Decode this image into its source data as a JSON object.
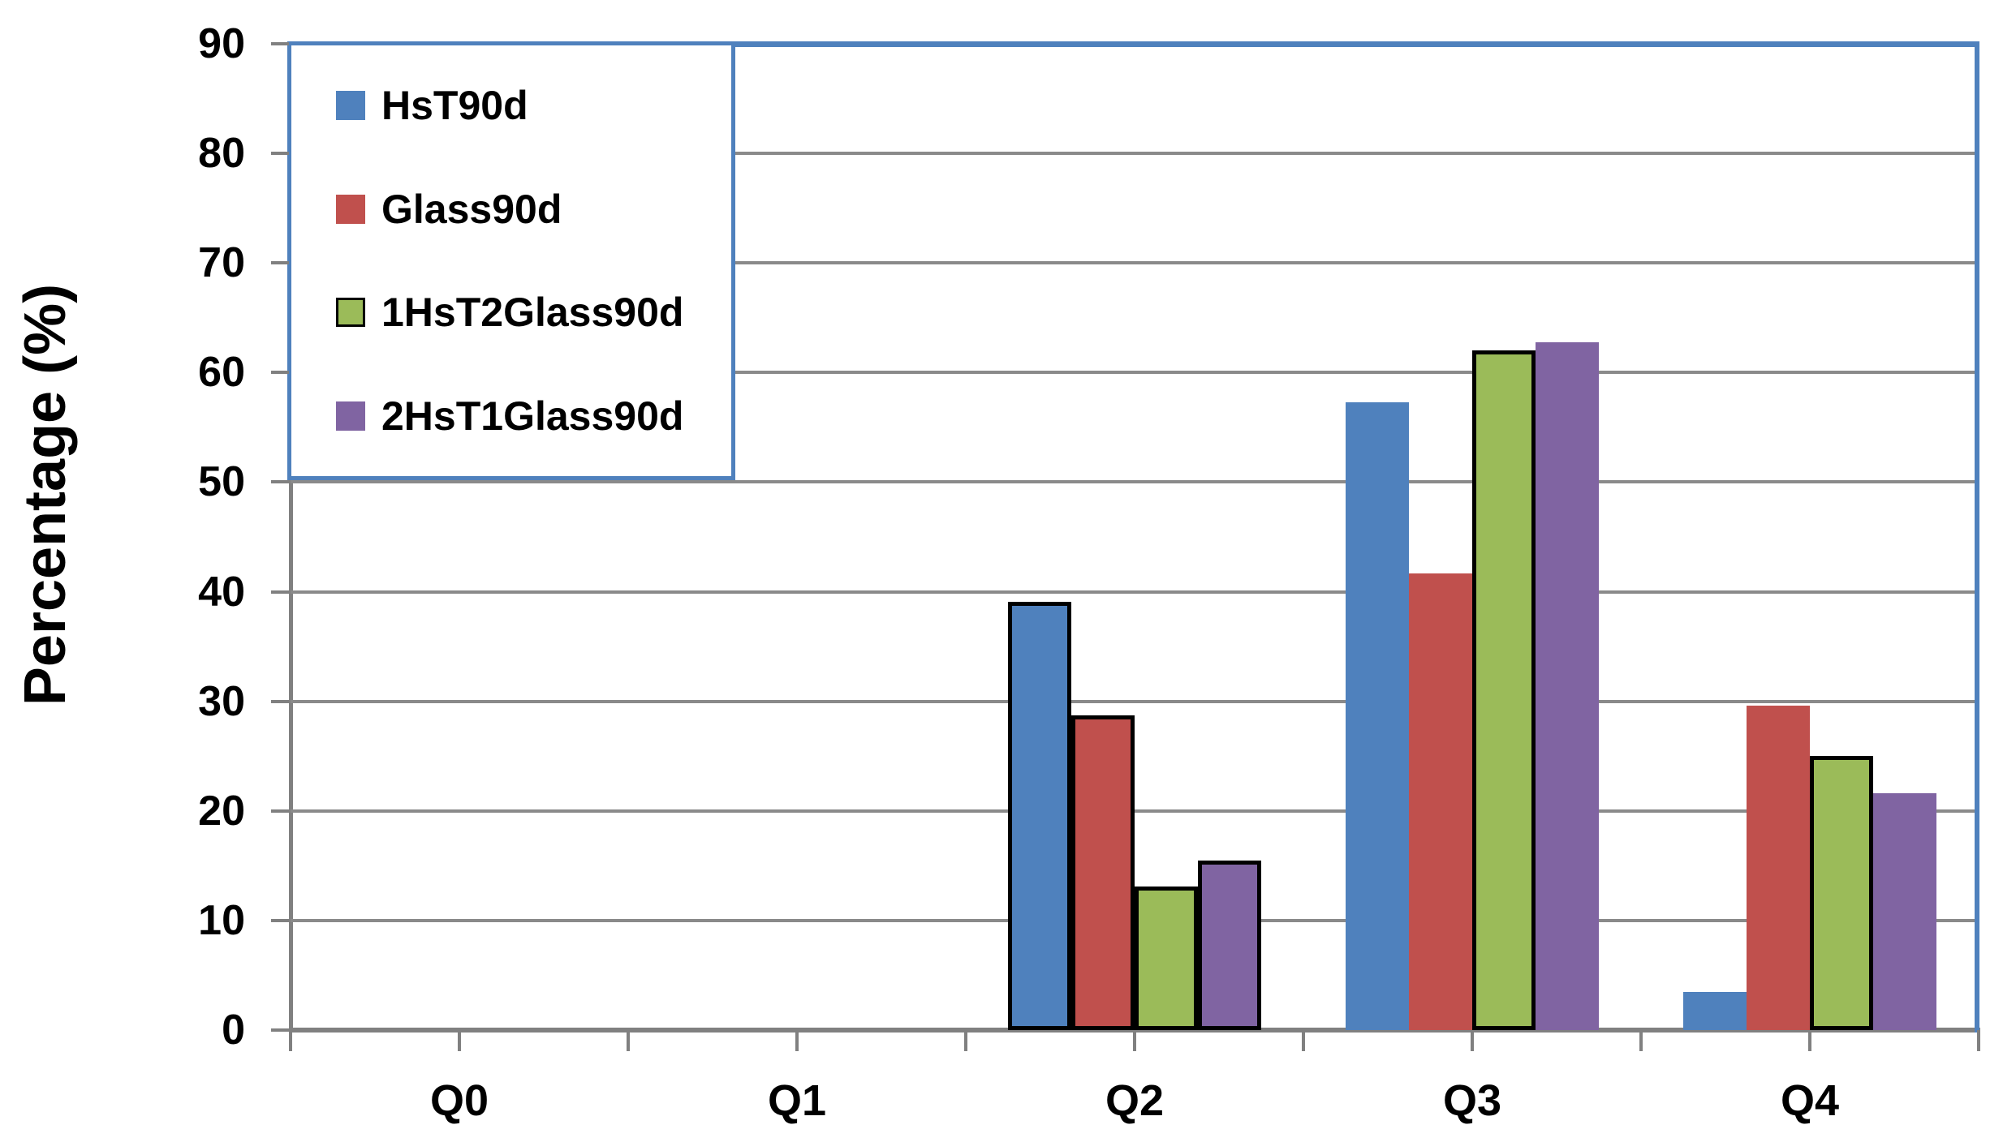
{
  "chart_data": {
    "type": "bar",
    "title": "",
    "xlabel": "",
    "ylabel": "Percentage (%)",
    "categories": [
      "Q0",
      "Q1",
      "Q2",
      "Q3",
      "Q4"
    ],
    "series": [
      {
        "name": "HsT90d",
        "color": "#4F81BD",
        "values": [
          0,
          0,
          39.1,
          57.3,
          3.5
        ],
        "bordered_categories": [
          2
        ]
      },
      {
        "name": "Glass90d",
        "color": "#C0504D",
        "values": [
          0,
          0,
          28.7,
          41.7,
          29.6
        ],
        "bordered_categories": [
          2
        ]
      },
      {
        "name": "1HsT2Glass90d",
        "color": "#9BBB59",
        "values": [
          0,
          0,
          13.1,
          62.0,
          25.0
        ],
        "bordered_categories": [
          2,
          3,
          4
        ],
        "legend_swatch_border": true
      },
      {
        "name": "2HsT1Glass90d",
        "color": "#8064A2",
        "values": [
          0,
          0,
          15.5,
          62.8,
          21.6
        ],
        "bordered_categories": [
          2
        ]
      }
    ],
    "ylim": [
      0,
      90
    ],
    "ytick_interval": 10,
    "yticks": [
      0,
      10,
      20,
      30,
      40,
      50,
      60,
      70,
      80,
      90
    ],
    "grid": true,
    "legend_position": "top-left",
    "colors": {
      "plot_border": "#4F81BD",
      "gridline": "#8a8a8a",
      "axis": "#808080",
      "bar_border": "#000000",
      "text": "#000000",
      "background": "#ffffff"
    }
  }
}
